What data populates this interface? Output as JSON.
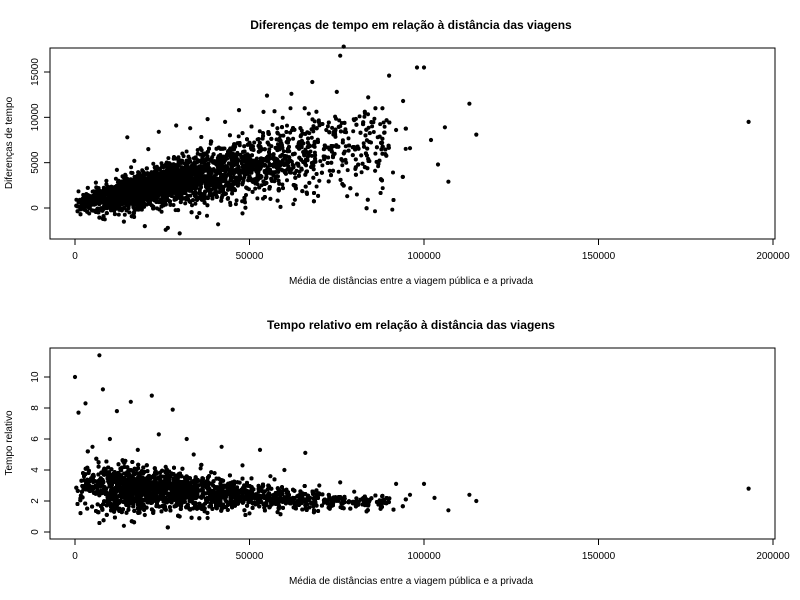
{
  "chart_data": [
    {
      "type": "scatter",
      "title": "Diferenças de tempo em relação à distância das viagens",
      "xlabel": "Média de distâncias entre a viagem pública e a privada",
      "ylabel": "Diferenças de tempo",
      "xlim": [
        0,
        200000
      ],
      "ylim": [
        -3000,
        18000
      ],
      "xticks": [
        0,
        50000,
        100000,
        150000,
        200000
      ],
      "yticks": [
        0,
        5000,
        10000,
        15000
      ],
      "grid": false,
      "marker_color": "#000000",
      "points": [
        [
          2000,
          200
        ],
        [
          3000,
          800
        ],
        [
          5000,
          1200
        ],
        [
          6000,
          2800
        ],
        [
          8000,
          -1200
        ],
        [
          9000,
          3000
        ],
        [
          11000,
          600
        ],
        [
          12000,
          4200
        ],
        [
          14000,
          -1500
        ],
        [
          15000,
          7800
        ],
        [
          17000,
          5200
        ],
        [
          18000,
          2000
        ],
        [
          20000,
          -2000
        ],
        [
          21000,
          6500
        ],
        [
          23000,
          1500
        ],
        [
          24000,
          8400
        ],
        [
          26000,
          -2400
        ],
        [
          27000,
          4800
        ],
        [
          29000,
          9100
        ],
        [
          30000,
          -2800
        ],
        [
          32000,
          3300
        ],
        [
          33000,
          8800
        ],
        [
          35000,
          -1000
        ],
        [
          36000,
          6600
        ],
        [
          38000,
          9800
        ],
        [
          40000,
          2500
        ],
        [
          41000,
          -1800
        ],
        [
          43000,
          9500
        ],
        [
          45000,
          5200
        ],
        [
          47000,
          10800
        ],
        [
          48000,
          -600
        ],
        [
          50000,
          7200
        ],
        [
          52000,
          4000
        ],
        [
          54000,
          10600
        ],
        [
          55000,
          12400
        ],
        [
          56000,
          1000
        ],
        [
          58000,
          8800
        ],
        [
          60000,
          5600
        ],
        [
          62000,
          12600
        ],
        [
          63000,
          900
        ],
        [
          65000,
          7400
        ],
        [
          67000,
          10400
        ],
        [
          68000,
          13900
        ],
        [
          70000,
          3000
        ],
        [
          72000,
          8600
        ],
        [
          73000,
          4100
        ],
        [
          75000,
          12800
        ],
        [
          76000,
          16800
        ],
        [
          77000,
          17800
        ],
        [
          78000,
          1300
        ],
        [
          80000,
          9700
        ],
        [
          82000,
          5800
        ],
        [
          84000,
          12200
        ],
        [
          86000,
          4100
        ],
        [
          88000,
          7200
        ],
        [
          90000,
          14600
        ],
        [
          92000,
          8600
        ],
        [
          94000,
          11800
        ],
        [
          96000,
          6600
        ],
        [
          98000,
          15500
        ],
        [
          100000,
          15500
        ],
        [
          102000,
          7500
        ],
        [
          104000,
          4800
        ],
        [
          106000,
          8900
        ],
        [
          107000,
          2900
        ],
        [
          113000,
          11500
        ],
        [
          115000,
          8100
        ],
        [
          193000,
          9500
        ]
      ]
    },
    {
      "type": "scatter",
      "title": "Tempo relativo em relação à distância das viagens",
      "xlabel": "Média de distâncias entre a viagem pública e a privada",
      "ylabel": "Tempo relativo",
      "xlim": [
        0,
        200000
      ],
      "ylim": [
        -0.5,
        12
      ],
      "xticks": [
        0,
        50000,
        100000,
        150000,
        200000
      ],
      "yticks": [
        0,
        2,
        4,
        6,
        8,
        10
      ],
      "grid": false,
      "marker_color": "#000000",
      "points": [
        [
          0,
          10
        ],
        [
          1000,
          7.7
        ],
        [
          3000,
          8.3
        ],
        [
          5000,
          5.5
        ],
        [
          7000,
          11.4
        ],
        [
          8000,
          9.2
        ],
        [
          10000,
          6.0
        ],
        [
          12000,
          7.8
        ],
        [
          14000,
          0.4
        ],
        [
          16000,
          8.4
        ],
        [
          18000,
          5.3
        ],
        [
          20000,
          1.1
        ],
        [
          22000,
          8.8
        ],
        [
          24000,
          6.3
        ],
        [
          26000,
          4.2
        ],
        [
          28000,
          7.9
        ],
        [
          30000,
          1.0
        ],
        [
          32000,
          6.0
        ],
        [
          34000,
          5.0
        ],
        [
          36000,
          4.1
        ],
        [
          38000,
          0.9
        ],
        [
          40000,
          3.8
        ],
        [
          42000,
          5.5
        ],
        [
          45000,
          3.2
        ],
        [
          48000,
          4.3
        ],
        [
          50000,
          1.2
        ],
        [
          53000,
          5.3
        ],
        [
          56000,
          3.6
        ],
        [
          60000,
          4.0
        ],
        [
          63000,
          1.6
        ],
        [
          66000,
          5.1
        ],
        [
          70000,
          3.0
        ],
        [
          73000,
          1.5
        ],
        [
          76000,
          3.2
        ],
        [
          80000,
          2.6
        ],
        [
          84000,
          1.7
        ],
        [
          88000,
          2.3
        ],
        [
          92000,
          3.1
        ],
        [
          96000,
          2.4
        ],
        [
          100000,
          3.1
        ],
        [
          103000,
          2.2
        ],
        [
          107000,
          1.4
        ],
        [
          113000,
          2.4
        ],
        [
          115000,
          2.0
        ],
        [
          193000,
          2.8
        ]
      ]
    }
  ]
}
